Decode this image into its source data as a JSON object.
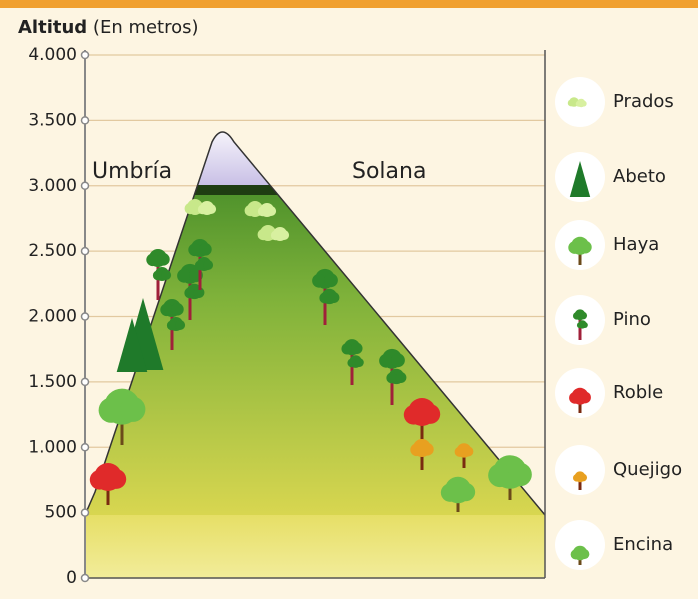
{
  "axis": {
    "title": "Altitud",
    "unit": "(En metros)",
    "ylim": [
      0,
      4000
    ],
    "ticks": [
      0,
      500,
      {
        "value": 1000,
        "label": "1.000"
      },
      {
        "value": 1500,
        "label": "1.500"
      },
      {
        "value": 2000,
        "label": "2.000"
      },
      {
        "value": 2500,
        "label": "2.500"
      },
      {
        "value": 3000,
        "label": "3.000"
      },
      {
        "value": 3500,
        "label": "3.500"
      },
      {
        "value": 4000,
        "label": "4.000"
      }
    ]
  },
  "slopes": {
    "left": "Umbría",
    "right": "Solana"
  },
  "legend": [
    {
      "label": "Prados"
    },
    {
      "label": "Abeto"
    },
    {
      "label": "Haya"
    },
    {
      "label": "Pino"
    },
    {
      "label": "Roble"
    },
    {
      "label": "Quejigo"
    },
    {
      "label": "Encina"
    }
  ]
}
